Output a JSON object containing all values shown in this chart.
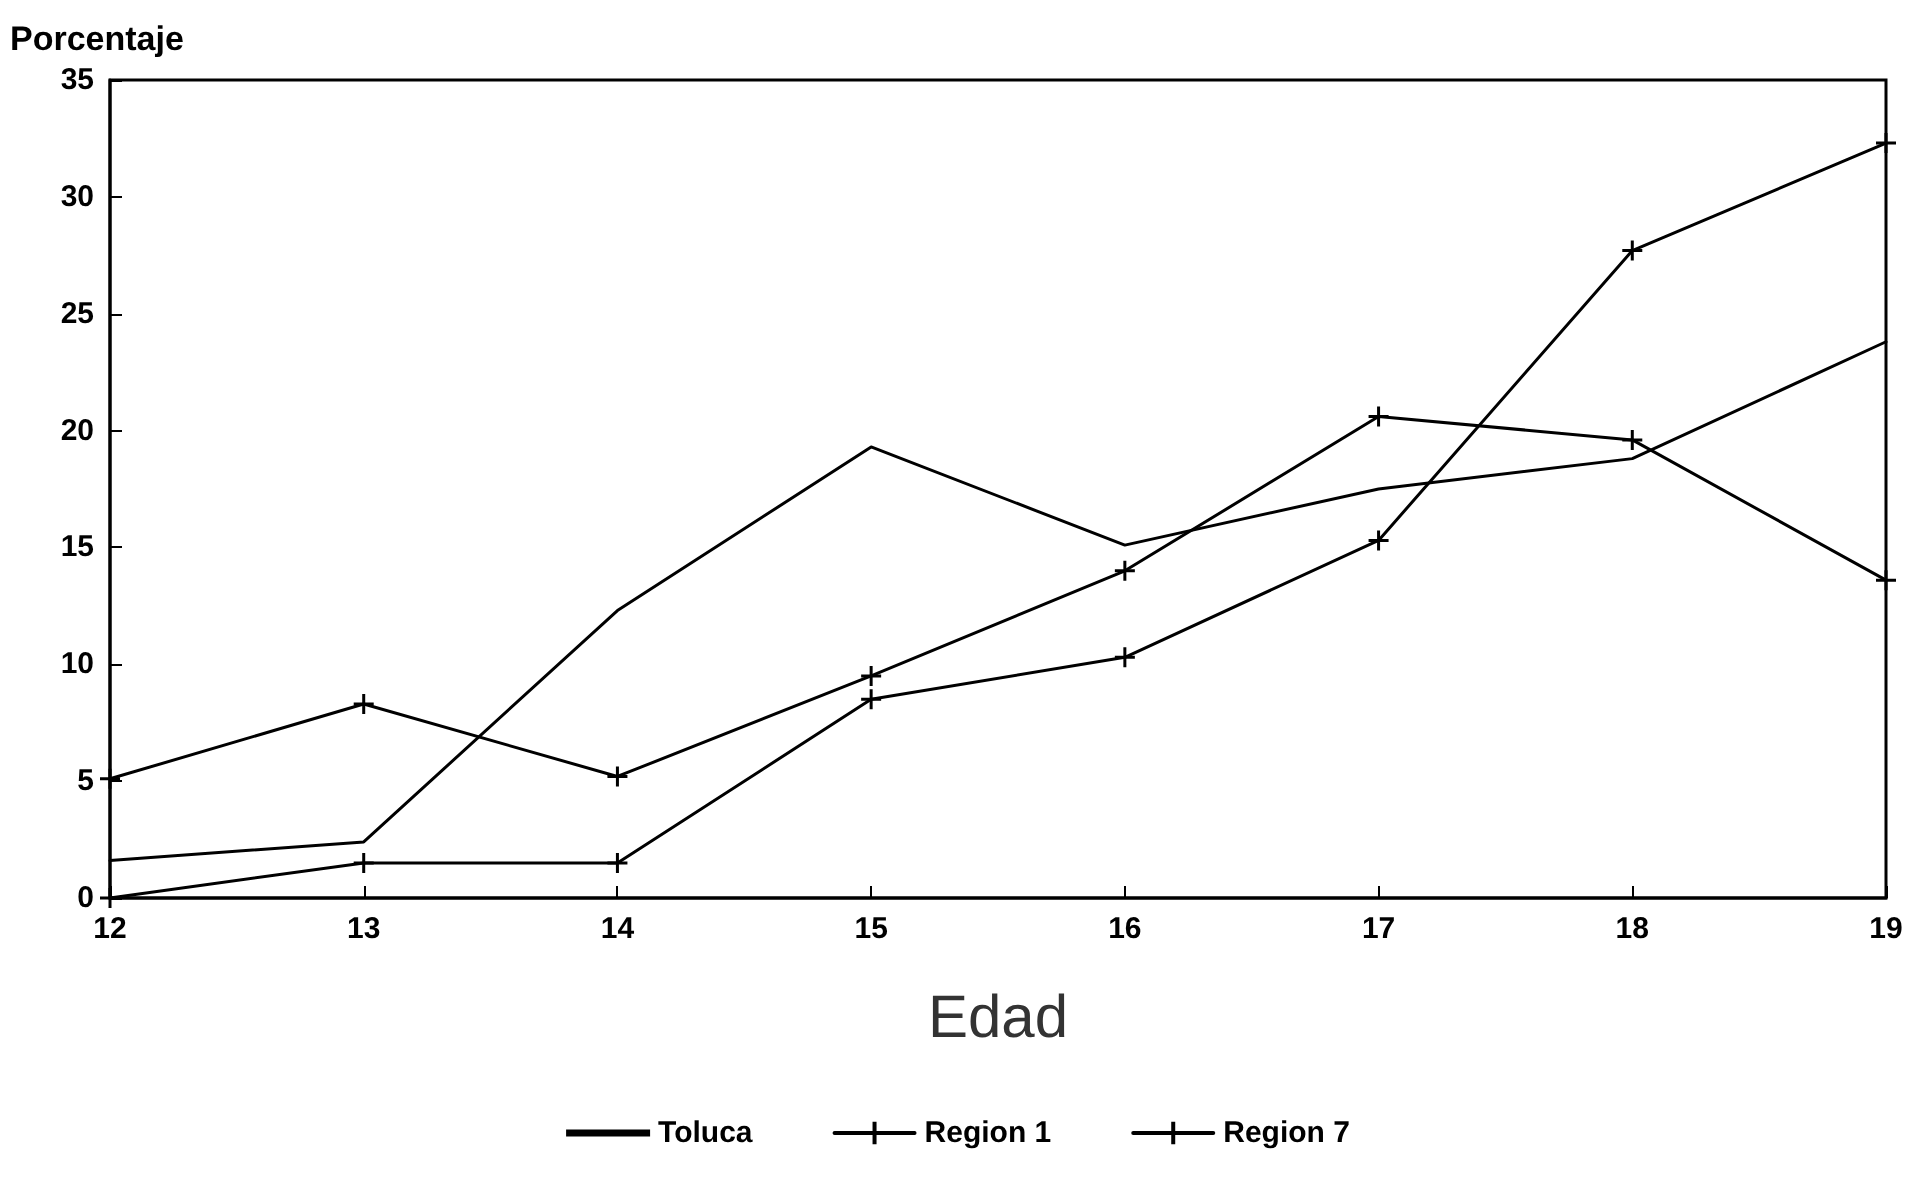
{
  "chart_data": {
    "type": "line",
    "xlabel": "Edad",
    "ylabel": "Porcentaje",
    "x": [
      12,
      13,
      14,
      15,
      16,
      17,
      18,
      19
    ],
    "series": [
      {
        "name": "Toluca",
        "color": "#000000",
        "marker": "none",
        "values": [
          1.6,
          2.4,
          12.3,
          19.3,
          15.1,
          17.5,
          18.8,
          23.8
        ]
      },
      {
        "name": "Region 1",
        "color": "#000000",
        "marker": "cross",
        "values": [
          5.1,
          8.3,
          5.2,
          9.5,
          14.0,
          20.6,
          19.6,
          13.6
        ]
      },
      {
        "name": "Region 7",
        "color": "#000000",
        "marker": "cross",
        "values": [
          0,
          1.5,
          1.5,
          8.5,
          10.3,
          15.3,
          27.7,
          32.3
        ]
      }
    ],
    "xlim": [
      12,
      19
    ],
    "xticks": [
      12,
      13,
      14,
      15,
      16,
      17,
      18,
      19
    ],
    "ylim": [
      0,
      35
    ],
    "yticks": [
      0,
      5,
      10,
      15,
      20,
      25,
      30,
      35
    ],
    "grid": false,
    "legend": "bottom",
    "line_style": "solid"
  }
}
